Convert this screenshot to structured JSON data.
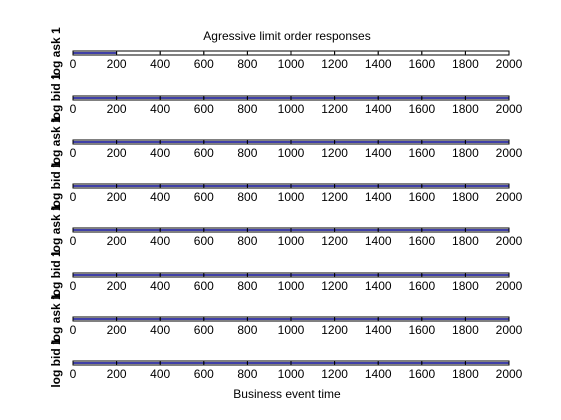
{
  "chart_data": {
    "type": "line",
    "title": "Agressive limit order responses",
    "xlabel": "Business event time",
    "xlim": [
      0,
      2000
    ],
    "xticks": [
      "0",
      "200",
      "400",
      "600",
      "800",
      "1000",
      "1200",
      "1400",
      "1600",
      "1800",
      "2000"
    ],
    "grid": false,
    "series_color": "#00008b",
    "panels": [
      {
        "ylabel": "log ask 1",
        "x": [
          0,
          200
        ],
        "y": [
          1,
          1
        ]
      },
      {
        "ylabel": "log bid 1",
        "x": [
          0,
          2000
        ],
        "y": [
          1,
          1
        ]
      },
      {
        "ylabel": "log ask 1",
        "x": [
          0,
          2000
        ],
        "y": [
          1,
          1
        ]
      },
      {
        "ylabel": "log bid 1",
        "x": [
          0,
          2000
        ],
        "y": [
          1,
          1
        ]
      },
      {
        "ylabel": "log ask 1",
        "x": [
          0,
          2000
        ],
        "y": [
          1,
          1
        ]
      },
      {
        "ylabel": "log bid 1",
        "x": [
          0,
          2000
        ],
        "y": [
          1,
          1
        ]
      },
      {
        "ylabel": "log ask 1",
        "x": [
          0,
          2000
        ],
        "y": [
          1,
          1
        ]
      },
      {
        "ylabel": "log bid 1",
        "x": [
          0,
          2000
        ],
        "y": [
          1,
          1
        ]
      }
    ]
  }
}
